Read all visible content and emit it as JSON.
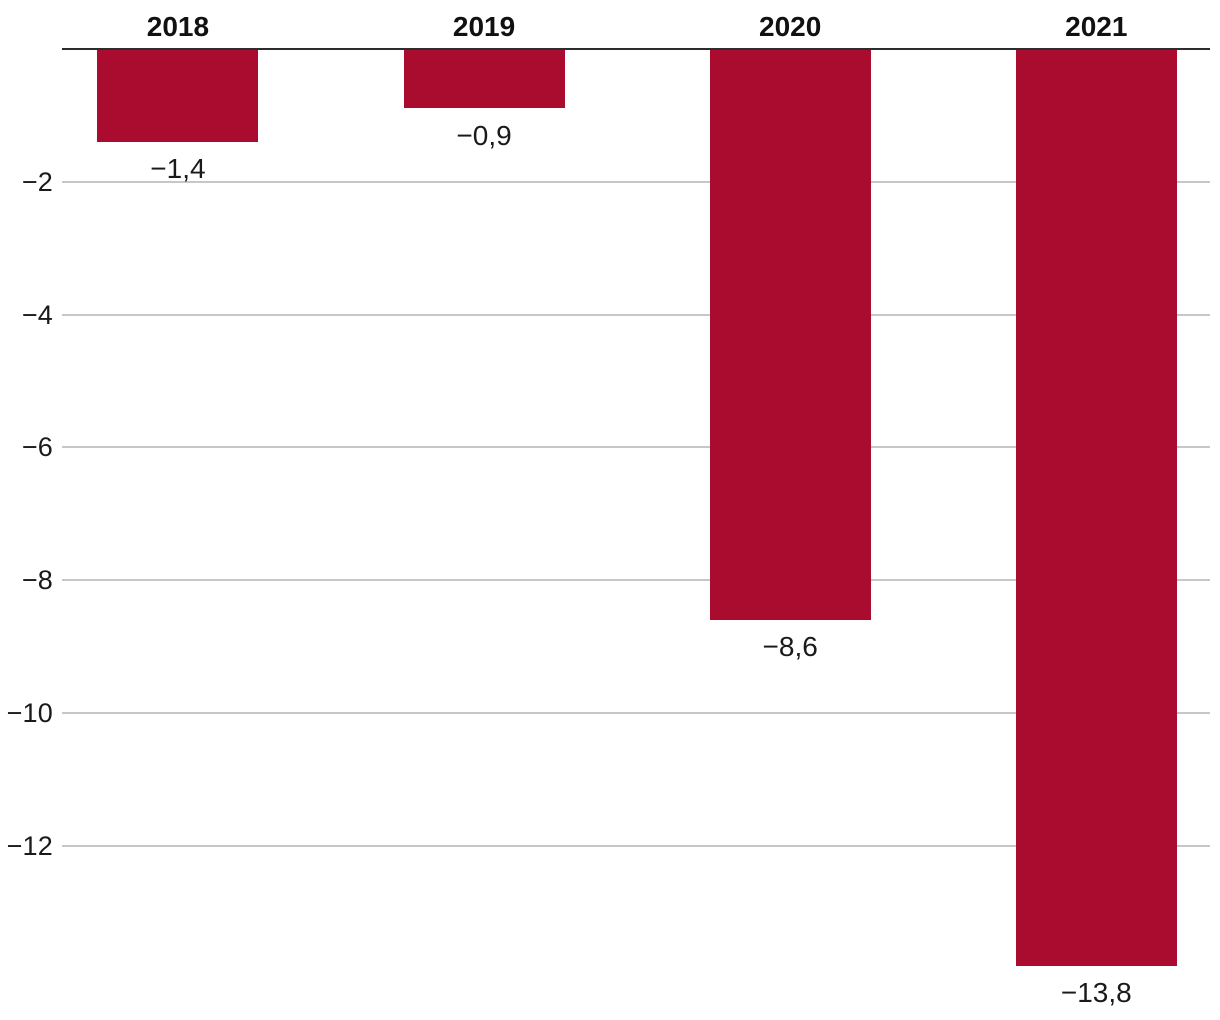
{
  "chart_data": {
    "type": "bar",
    "categories": [
      "2018",
      "2019",
      "2020",
      "2021"
    ],
    "values": [
      -1.4,
      -0.9,
      -8.6,
      -13.8
    ],
    "bar_value_labels": [
      "−1,4",
      "−0,9",
      "−8,6",
      "−13,8"
    ],
    "title": "",
    "xlabel": "",
    "ylabel": "",
    "ylim": [
      -14.6,
      0
    ],
    "yticks": [
      -2,
      -4,
      -6,
      -8,
      -10,
      -12
    ],
    "ytick_labels": [
      "−2",
      "−4",
      "−6",
      "−8",
      "−10",
      "−12"
    ],
    "grid": true,
    "legend": false,
    "decimal_separator": ",",
    "category_label_position": "above-axis",
    "value_label_position": "below-bar",
    "colors": {
      "bar": "#a90c2f",
      "axis_line": "#2d2d2d",
      "gridline": "#c7c7c7",
      "category_label": "#111111",
      "value_label": "#1a1a1a",
      "tick_label": "#1a1a1a",
      "background": "#ffffff"
    }
  }
}
